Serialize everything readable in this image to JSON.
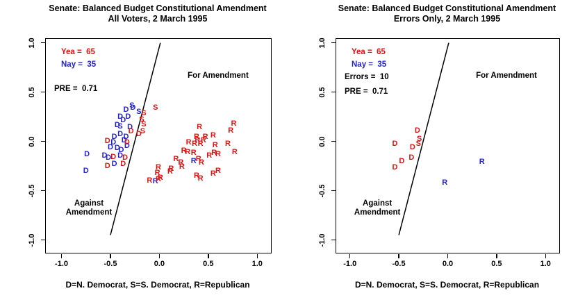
{
  "colors": {
    "yea": "#e31212",
    "nay": "#2424cc",
    "axis": "#000000",
    "background": "#ffffff"
  },
  "chart_data": [
    {
      "type": "scatter",
      "title_line1": "Senate: Balanced Budget Constitutional Amendment",
      "title_line2": "All Voters, 2 March 1995",
      "xlabel": "D=N. Democrat, S=S. Democrat, R=Republican",
      "xlim": [
        -1.16,
        1.14
      ],
      "ylim": [
        -1.13,
        1.04
      ],
      "xticks": [
        -1.0,
        -0.5,
        0.0,
        0.5,
        1.0
      ],
      "yticks": [
        -1.0,
        -0.5,
        0.0,
        0.5,
        1.0
      ],
      "grid": false,
      "legend": [
        {
          "label": "Yea =  65",
          "color": "yea"
        },
        {
          "label": "Nay =  35",
          "color": "nay"
        },
        {
          "label": "PRE =  0.71",
          "color": "axis"
        }
      ],
      "annotations": [
        {
          "lines": [
            "For Amendment"
          ],
          "x": 0.6,
          "y": 0.66
        },
        {
          "lines": [
            "Against",
            "Amendment"
          ],
          "x": -0.72,
          "y": -0.68
        }
      ],
      "cutline": {
        "x1": -0.5,
        "y1": -0.95,
        "x2": 0.01,
        "y2": 1.0
      },
      "points": [
        [
          "D",
          "n",
          -0.74,
          -0.13
        ],
        [
          "D",
          "n",
          -0.75,
          -0.3
        ],
        [
          "D",
          "n",
          -0.56,
          -0.15
        ],
        [
          "D",
          "n",
          -0.52,
          -0.17
        ],
        [
          "D",
          "n",
          -0.5,
          -0.06
        ],
        [
          "D",
          "n",
          -0.47,
          -0.01
        ],
        [
          "D",
          "n",
          -0.46,
          0.04
        ],
        [
          "D",
          "n",
          -0.46,
          -0.23
        ],
        [
          "D",
          "n",
          -0.43,
          -0.07
        ],
        [
          "D",
          "n",
          -0.43,
          0.16
        ],
        [
          "D",
          "n",
          -0.4,
          0.25
        ],
        [
          "D",
          "n",
          -0.4,
          0.07
        ],
        [
          "D",
          "n",
          -0.4,
          -0.15
        ],
        [
          "D",
          "n",
          -0.39,
          -0.09
        ],
        [
          "D",
          "n",
          -0.37,
          0.21
        ],
        [
          "D",
          "n",
          -0.36,
          0.01
        ],
        [
          "D",
          "n",
          -0.34,
          0.32
        ],
        [
          "D",
          "n",
          -0.34,
          0.04
        ],
        [
          "D",
          "n",
          -0.33,
          -0.05
        ],
        [
          "D",
          "n",
          -0.32,
          0.25
        ],
        [
          "D",
          "n",
          -0.3,
          0.14
        ],
        [
          "D",
          "n",
          -0.27,
          0.34
        ],
        [
          "S",
          "n",
          -0.4,
          0.15
        ],
        [
          "S",
          "n",
          -0.28,
          0.36
        ],
        [
          "S",
          "n",
          -0.21,
          0.3
        ],
        [
          "R",
          "n",
          0.35,
          -0.2
        ],
        [
          "R",
          "n",
          -0.04,
          -0.41
        ],
        [
          "D",
          "y",
          -0.53,
          0.0
        ],
        [
          "D",
          "y",
          -0.53,
          -0.25
        ],
        [
          "D",
          "y",
          -0.47,
          -0.16
        ],
        [
          "D",
          "y",
          -0.37,
          -0.23
        ],
        [
          "D",
          "y",
          -0.35,
          -0.17
        ],
        [
          "D",
          "y",
          -0.33,
          -0.01
        ],
        [
          "D",
          "y",
          -0.29,
          0.1
        ],
        [
          "D",
          "y",
          -0.21,
          0.07
        ],
        [
          "S",
          "y",
          -0.16,
          0.28
        ],
        [
          "S",
          "y",
          -0.18,
          0.22
        ],
        [
          "S",
          "y",
          -0.16,
          0.17
        ],
        [
          "S",
          "y",
          -0.04,
          0.34
        ],
        [
          "S",
          "y",
          -0.17,
          0.1
        ],
        [
          "R",
          "y",
          0.41,
          0.14
        ],
        [
          "R",
          "y",
          0.76,
          0.18
        ],
        [
          "R",
          "y",
          0.73,
          0.11
        ],
        [
          "R",
          "y",
          0.55,
          0.06
        ],
        [
          "R",
          "y",
          0.47,
          0.04
        ],
        [
          "R",
          "y",
          0.38,
          0.04
        ],
        [
          "R",
          "y",
          0.45,
          0.01
        ],
        [
          "R",
          "y",
          0.39,
          0.01
        ],
        [
          "R",
          "y",
          0.3,
          -0.01
        ],
        [
          "R",
          "y",
          0.36,
          -0.03
        ],
        [
          "R",
          "y",
          0.42,
          -0.03
        ],
        [
          "R",
          "y",
          0.57,
          -0.04
        ],
        [
          "R",
          "y",
          0.7,
          -0.03
        ],
        [
          "R",
          "y",
          0.25,
          -0.1
        ],
        [
          "R",
          "y",
          0.29,
          -0.11
        ],
        [
          "R",
          "y",
          0.35,
          -0.12
        ],
        [
          "R",
          "y",
          0.56,
          -0.12
        ],
        [
          "R",
          "y",
          0.6,
          -0.13
        ],
        [
          "R",
          "y",
          0.77,
          -0.11
        ],
        [
          "R",
          "y",
          0.51,
          -0.15
        ],
        [
          "R",
          "y",
          0.17,
          -0.18
        ],
        [
          "R",
          "y",
          0.4,
          -0.18
        ],
        [
          "R",
          "y",
          0.22,
          -0.22
        ],
        [
          "R",
          "y",
          0.43,
          -0.22
        ],
        [
          "R",
          "y",
          -0.01,
          -0.27
        ],
        [
          "R",
          "y",
          0.12,
          -0.28
        ],
        [
          "R",
          "y",
          0.23,
          -0.26
        ],
        [
          "R",
          "y",
          -0.02,
          -0.32
        ],
        [
          "R",
          "y",
          0.11,
          -0.31
        ],
        [
          "R",
          "y",
          -0.1,
          -0.4
        ],
        [
          "R",
          "y",
          -0.01,
          -0.39
        ],
        [
          "R",
          "y",
          0.01,
          -0.37
        ],
        [
          "R",
          "y",
          0.38,
          -0.35
        ],
        [
          "R",
          "y",
          0.42,
          -0.38
        ],
        [
          "R",
          "y",
          0.6,
          -0.3
        ],
        [
          "R",
          "y",
          0.55,
          -0.33
        ]
      ]
    },
    {
      "type": "scatter",
      "title_line1": "Senate: Balanced Budget Constitutional Amendment",
      "title_line2": "Errors Only, 2 March 1995",
      "xlabel": "D=N. Democrat, S=S. Democrat, R=Republican",
      "xlim": [
        -1.14,
        1.14
      ],
      "ylim": [
        -1.13,
        1.04
      ],
      "xticks": [
        -1.0,
        -0.5,
        0.0,
        0.5,
        1.0
      ],
      "yticks": [
        -1.0,
        -0.5,
        0.0,
        0.5,
        1.0
      ],
      "grid": false,
      "legend": [
        {
          "label": "Yea =  65",
          "color": "yea"
        },
        {
          "label": "Nay =  35",
          "color": "nay"
        },
        {
          "label": "Errors =  10",
          "color": "axis"
        },
        {
          "label": "PRE =  0.71",
          "color": "axis"
        }
      ],
      "annotations": [
        {
          "lines": [
            "For Amendment"
          ],
          "x": 0.6,
          "y": 0.66
        },
        {
          "lines": [
            "Against",
            "Amendment"
          ],
          "x": -0.72,
          "y": -0.68
        }
      ],
      "cutline": {
        "x1": -0.5,
        "y1": -0.95,
        "x2": 0.01,
        "y2": 1.0
      },
      "points": [
        [
          "D",
          "y",
          -0.31,
          0.11
        ],
        [
          "D",
          "y",
          -0.54,
          -0.03
        ],
        [
          "D",
          "y",
          -0.36,
          -0.06
        ],
        [
          "S",
          "y",
          -0.29,
          0.02
        ],
        [
          "S",
          "y",
          -0.3,
          -0.03
        ],
        [
          "D",
          "y",
          -0.37,
          -0.17
        ],
        [
          "D",
          "y",
          -0.47,
          -0.2
        ],
        [
          "D",
          "y",
          -0.54,
          -0.27
        ],
        [
          "R",
          "n",
          0.35,
          -0.21
        ],
        [
          "R",
          "n",
          -0.03,
          -0.42
        ]
      ]
    }
  ]
}
